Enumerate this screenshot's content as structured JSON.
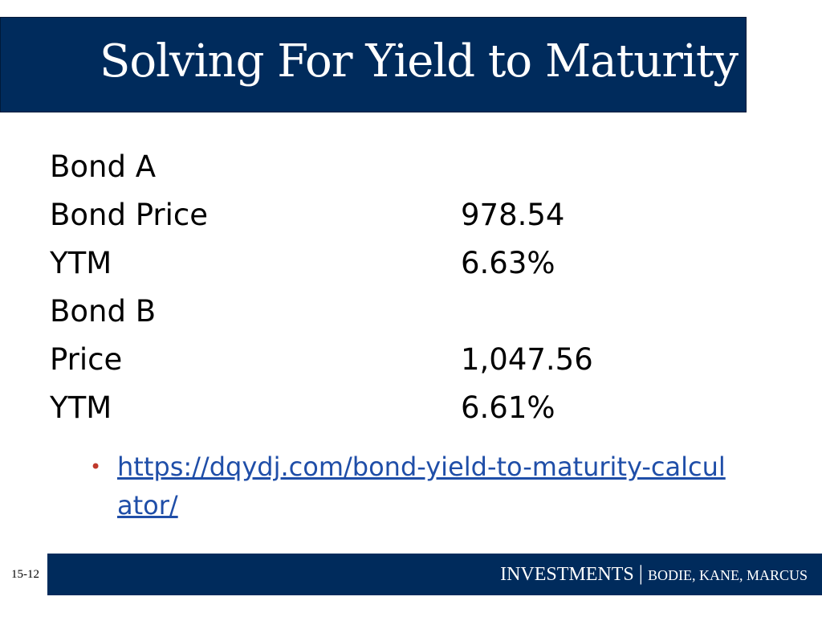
{
  "slide": {
    "title": "Solving For Yield to Maturity",
    "rows": [
      {
        "label": "Bond A",
        "value": ""
      },
      {
        "label": "Bond Price",
        "value": "978.54"
      },
      {
        "label": "YTM",
        "value": "6.63%"
      },
      {
        "label": "Bond B",
        "value": ""
      },
      {
        "label": "Price",
        "value": "1,047.56"
      },
      {
        "label": "YTM",
        "value": "6.61%"
      }
    ],
    "bullet": {
      "marker": "•",
      "link_text": "https://dqydj.com/bond-yield-to-maturity-calculator/"
    }
  },
  "footer": {
    "slide_number": "15-12",
    "brand": "INVESTMENTS",
    "separator": "|",
    "authors": "BODIE, KANE, MARCUS"
  },
  "colors": {
    "header_bg": "#002b5c",
    "link": "#1f4ea8",
    "bullet": "#c0392b"
  }
}
